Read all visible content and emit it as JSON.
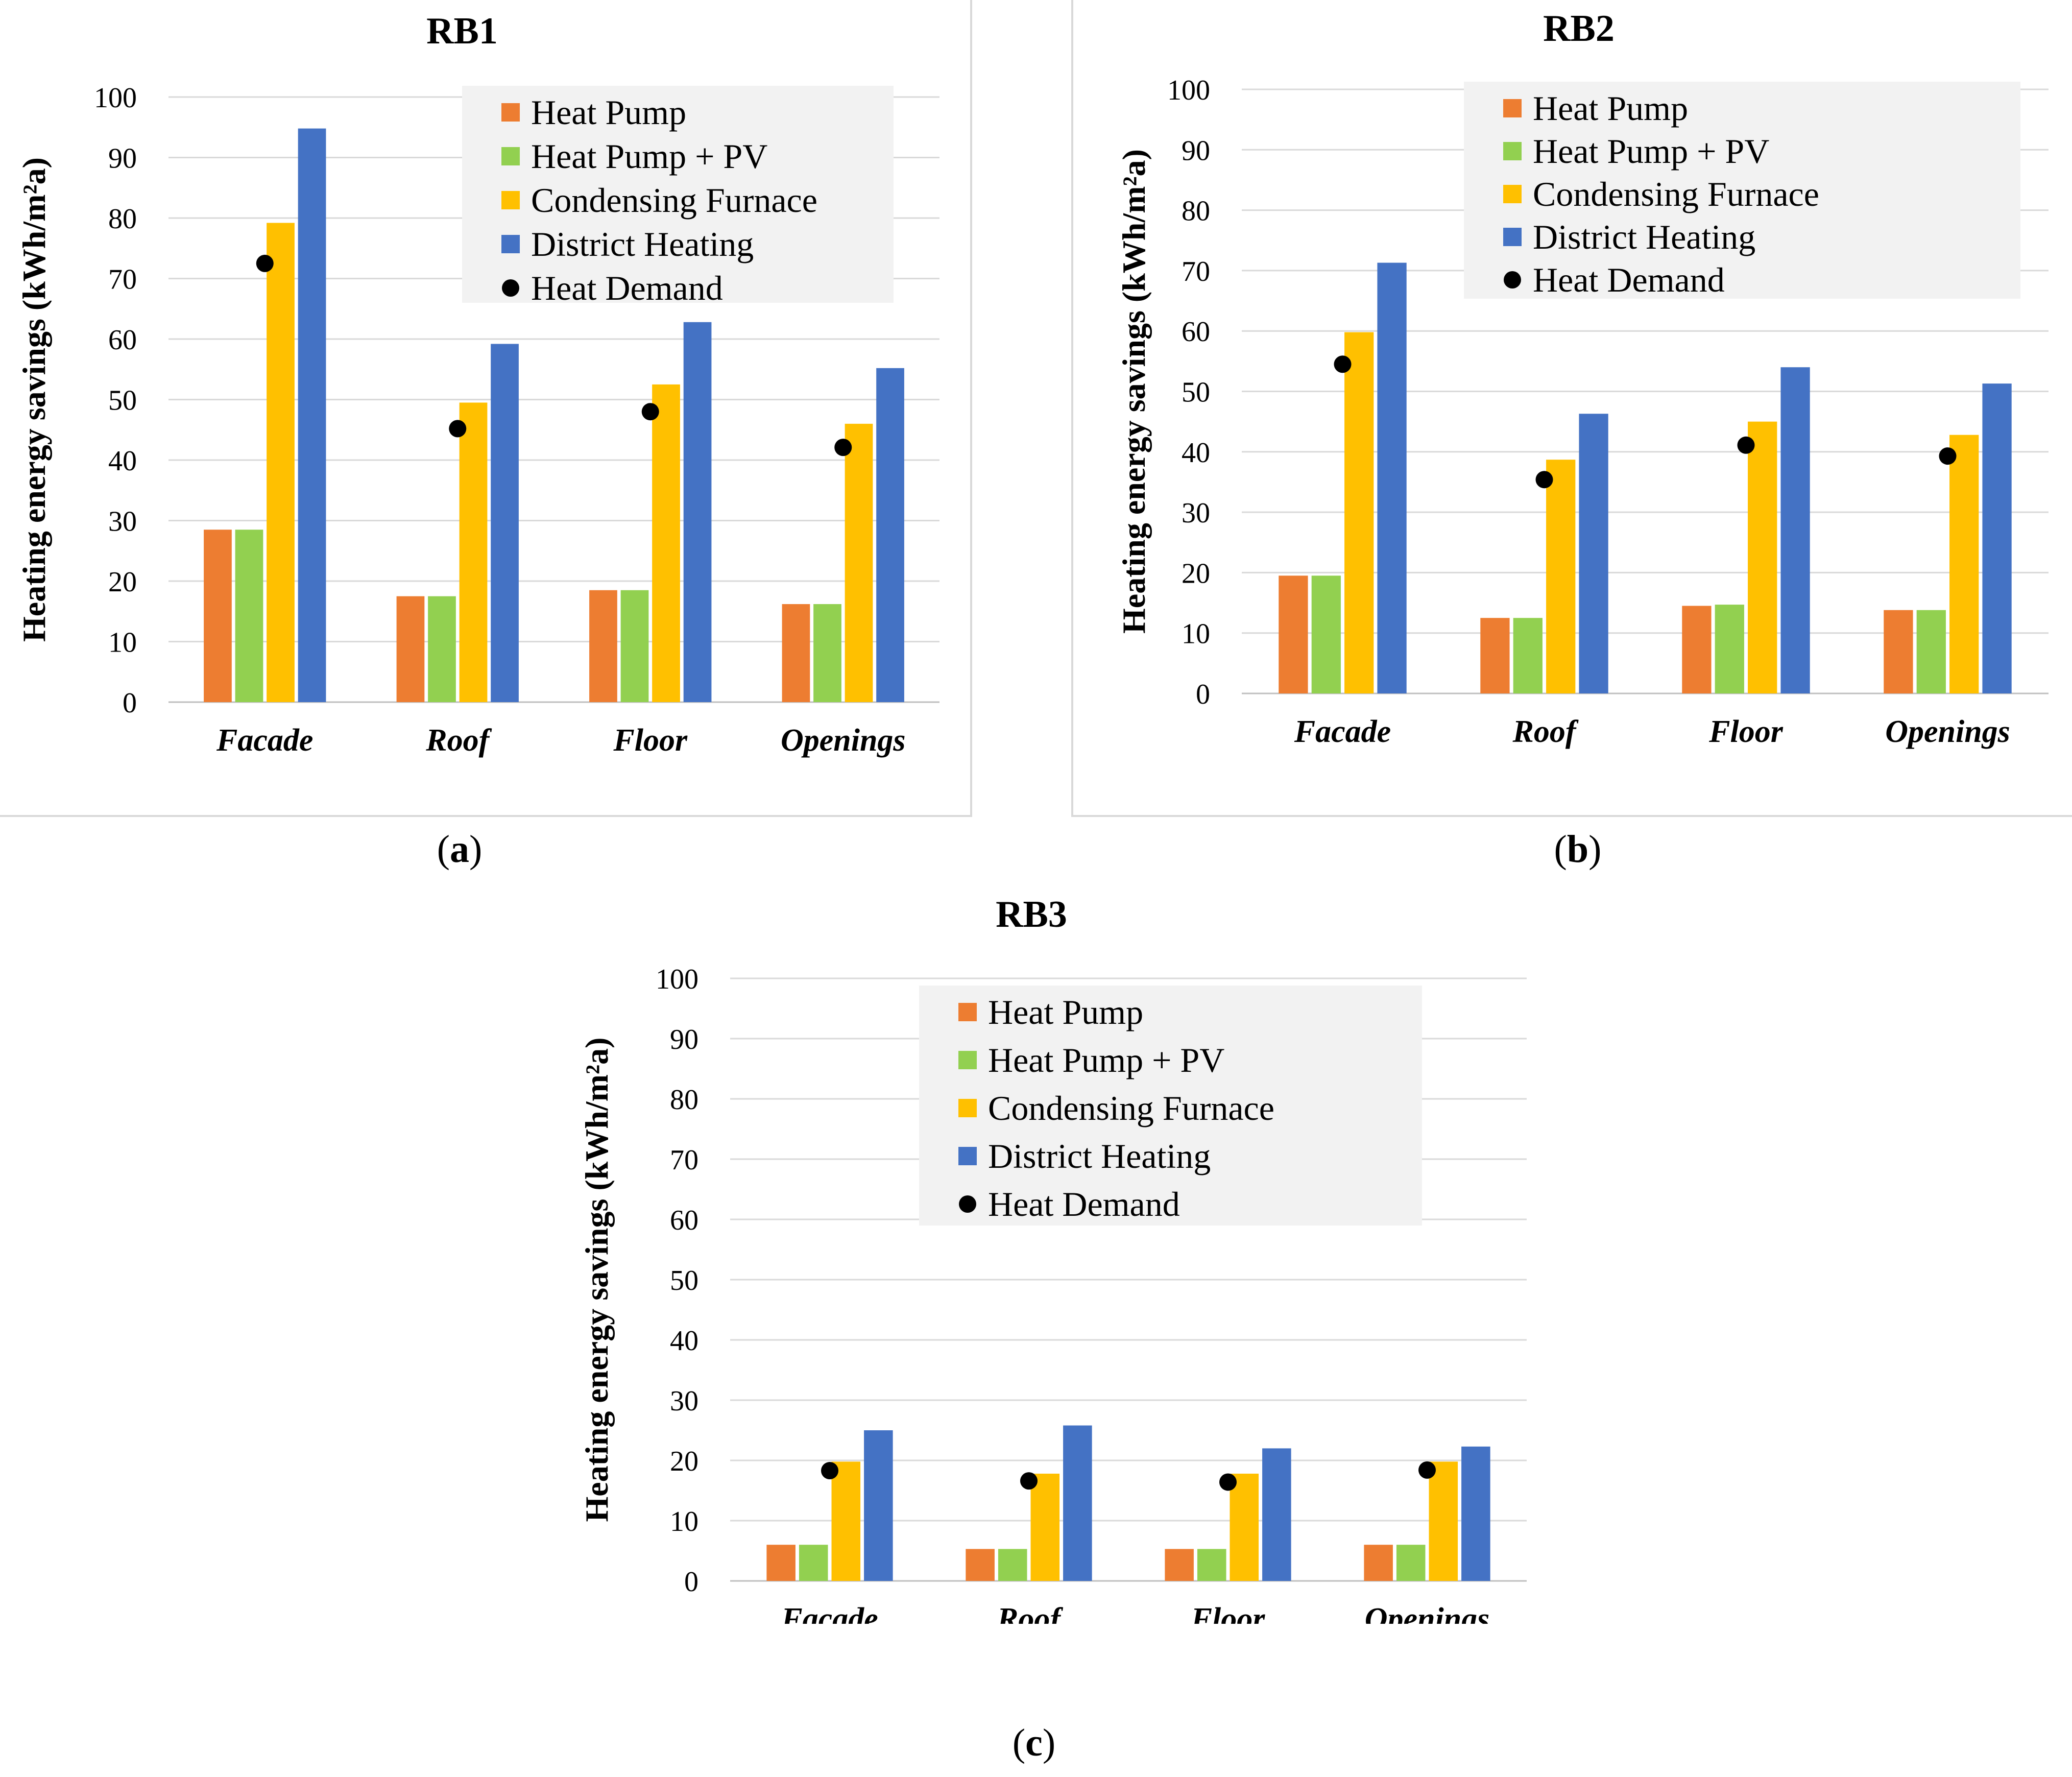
{
  "legend": {
    "heat_pump": "Heat Pump",
    "heat_pump_pv": "Heat Pump + PV",
    "condensing_furnace": "Condensing Furnace",
    "district_heating": "District Heating",
    "heat_demand": "Heat Demand"
  },
  "colors": {
    "heat_pump": "#ed7d31",
    "heat_pump_pv": "#92d050",
    "condensing_furnace": "#ffc000",
    "district_heating": "#4472c4",
    "heat_demand": "#000000",
    "gridline": "#d9d9d9",
    "legend_bg": "#f2f2f2"
  },
  "captions": {
    "a": {
      "open": "(",
      "letter": "a",
      "close": ")"
    },
    "b": {
      "open": "(",
      "letter": "b",
      "close": ")"
    },
    "c": {
      "open": "(",
      "letter": "c",
      "close": ")"
    }
  },
  "chart_data": [
    {
      "id": "a",
      "type": "bar",
      "title": "RB1",
      "ylabel": "Heating energy savings (kWh/m²a)",
      "ylim": [
        0,
        100
      ],
      "yticks": [
        0,
        10,
        20,
        30,
        40,
        50,
        60,
        70,
        80,
        90,
        100
      ],
      "categories": [
        "Facade",
        "Roof",
        "Floor",
        "Openings"
      ],
      "series": [
        {
          "name": "Heat Pump",
          "values": [
            28.5,
            17.5,
            18.5,
            16.2
          ]
        },
        {
          "name": "Heat Pump + PV",
          "values": [
            28.5,
            17.5,
            18.5,
            16.2
          ]
        },
        {
          "name": "Condensing Furnace",
          "values": [
            79.2,
            49.5,
            52.5,
            46.0
          ]
        },
        {
          "name": "District Heating",
          "values": [
            94.8,
            59.2,
            62.8,
            55.2
          ]
        }
      ],
      "heat_demand": [
        72.5,
        45.2,
        48.0,
        42.1
      ]
    },
    {
      "id": "b",
      "type": "bar",
      "title": "RB2",
      "ylabel": "Heating energy savings (kWh/m²a)",
      "ylim": [
        0,
        100
      ],
      "yticks": [
        0,
        10,
        20,
        30,
        40,
        50,
        60,
        70,
        80,
        90,
        100
      ],
      "categories": [
        "Facade",
        "Roof",
        "Floor",
        "Openings"
      ],
      "series": [
        {
          "name": "Heat Pump",
          "values": [
            19.5,
            12.5,
            14.5,
            13.8
          ]
        },
        {
          "name": "Heat Pump + PV",
          "values": [
            19.5,
            12.5,
            14.7,
            13.8
          ]
        },
        {
          "name": "Condensing Furnace",
          "values": [
            59.8,
            38.7,
            45.0,
            42.8
          ]
        },
        {
          "name": "District Heating",
          "values": [
            71.3,
            46.3,
            54.0,
            51.3
          ]
        }
      ],
      "heat_demand": [
        54.5,
        35.4,
        41.1,
        39.3
      ]
    },
    {
      "id": "c",
      "type": "bar",
      "title": "RB3",
      "ylabel": "Heating energy savings (kWh/m²a)",
      "ylim": [
        0,
        100
      ],
      "yticks": [
        0,
        10,
        20,
        30,
        40,
        50,
        60,
        70,
        80,
        90,
        100
      ],
      "categories": [
        "Facade",
        "Roof",
        "Floor",
        "Openings"
      ],
      "series": [
        {
          "name": "Heat Pump",
          "values": [
            6.0,
            5.3,
            5.3,
            6.0
          ]
        },
        {
          "name": "Heat Pump + PV",
          "values": [
            6.0,
            5.3,
            5.3,
            6.0
          ]
        },
        {
          "name": "Condensing Furnace",
          "values": [
            19.8,
            17.8,
            17.8,
            19.8
          ]
        },
        {
          "name": "District Heating",
          "values": [
            25.0,
            25.8,
            22.0,
            22.3
          ]
        }
      ],
      "heat_demand": [
        18.3,
        16.6,
        16.4,
        18.4
      ]
    }
  ]
}
